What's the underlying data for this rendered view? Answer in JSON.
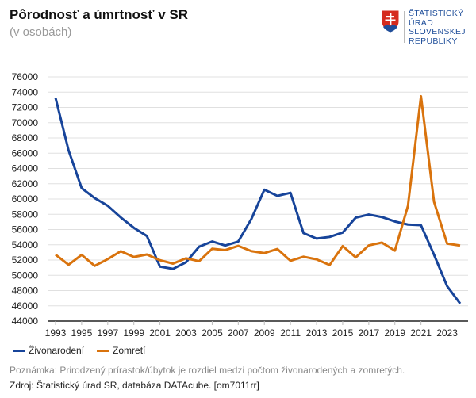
{
  "title": "Pôrodnosť a úmrtnosť v SR",
  "subtitle": "(v osobách)",
  "logo": {
    "text": [
      "ŠTATISTICKÝ",
      "ÚRAD",
      "SLOVENSKEJ",
      "REPUBLIKY"
    ]
  },
  "note": "Poznámka: Prirodzený prírastok/úbytok je rozdiel medzi počtom živonarodených a zomretých.",
  "source": "Zdroj: Štatistický úrad SR, databáza DATAcube. [om7011rr]",
  "chart_data": {
    "type": "line",
    "title": "Pôrodnosť a úmrtnosť v SR",
    "subtitle": "(v osobách)",
    "ylim": [
      44000,
      76000
    ],
    "yticks": [
      44000,
      46000,
      48000,
      50000,
      52000,
      54000,
      56000,
      58000,
      60000,
      62000,
      64000,
      66000,
      68000,
      70000,
      72000,
      74000,
      76000
    ],
    "xticklabels": [
      1993,
      1995,
      1997,
      1999,
      2001,
      2003,
      2005,
      2007,
      2009,
      2011,
      2013,
      2015,
      2017,
      2019,
      2021,
      2023
    ],
    "grid": true,
    "legend": "bottom-left",
    "x": [
      1993,
      1994,
      1995,
      1996,
      1997,
      1998,
      1999,
      2000,
      2001,
      2002,
      2003,
      2004,
      2005,
      2006,
      2007,
      2008,
      2009,
      2010,
      2011,
      2012,
      2013,
      2014,
      2015,
      2016,
      2017,
      2018,
      2019,
      2020,
      2021,
      2022,
      2023,
      2024
    ],
    "series": [
      {
        "name": "Živonarodení",
        "color": "#17449a",
        "values": [
          73256,
          66370,
          61427,
          60123,
          59111,
          57582,
          56223,
          55151,
          51136,
          50841,
          51713,
          53747,
          54430,
          53904,
          54424,
          57360,
          61217,
          60410,
          60813,
          55535,
          54823,
          55033,
          55602,
          57557,
          57969,
          57639,
          57054,
          56650,
          56565,
          52700,
          48588,
          46300
        ]
      },
      {
        "name": "Zomretí",
        "color": "#d9730d",
        "values": [
          52707,
          51386,
          52686,
          51236,
          52124,
          53156,
          52402,
          52724,
          51980,
          51532,
          52230,
          51852,
          53475,
          53301,
          53856,
          53164,
          52913,
          53445,
          51903,
          52437,
          52089,
          51346,
          53826,
          52351,
          53914,
          54293,
          53234,
          59089,
          73461,
          59631,
          54160,
          53900
        ]
      }
    ]
  }
}
